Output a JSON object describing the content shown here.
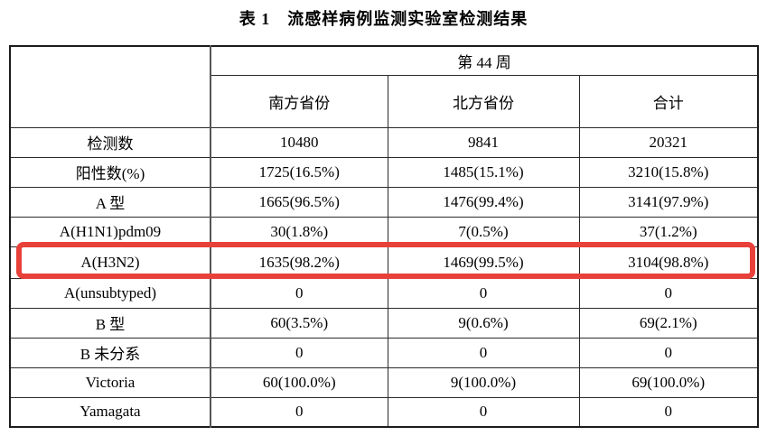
{
  "title": "表 1　流感样病例监测实验室检测结果",
  "table": {
    "corner_label": "",
    "week_header": "第 44 周",
    "columns": [
      "南方省份",
      "北方省份",
      "合计"
    ],
    "rows": [
      {
        "label": "检测数",
        "label_bold": true,
        "cells": [
          "10480",
          "9841",
          "20321"
        ],
        "cells_bold": [
          true,
          true,
          true
        ],
        "highlighted": false
      },
      {
        "label": "阳性数(%)",
        "label_bold": true,
        "cells": [
          "1725(16.5%)",
          "1485(15.1%)",
          "3210(15.8%)"
        ],
        "cells_bold": [
          true,
          true,
          true
        ],
        "highlighted": false
      },
      {
        "label": "A 型",
        "label_bold": true,
        "cells": [
          "1665(96.5%)",
          "1476(99.4%)",
          "3141(97.9%)"
        ],
        "cells_bold": [
          true,
          true,
          true
        ],
        "highlighted": false
      },
      {
        "label": "A(H1N1)pdm09",
        "label_bold": false,
        "cells": [
          "30(1.8%)",
          "7(0.5%)",
          "37(1.2%)"
        ],
        "cells_bold": [
          false,
          true,
          true
        ],
        "highlighted": false
      },
      {
        "label": "A(H3N2)",
        "label_bold": false,
        "cells": [
          "1635(98.2%)",
          "1469(99.5%)",
          "3104(98.8%)"
        ],
        "cells_bold": [
          false,
          false,
          false
        ],
        "highlighted": true
      },
      {
        "label": "A(unsubtyped)",
        "label_bold": false,
        "cells": [
          "0",
          "0",
          "0"
        ],
        "cells_bold": [
          false,
          false,
          false
        ],
        "highlighted": false
      },
      {
        "label": "B 型",
        "label_bold": true,
        "cells": [
          "60(3.5%)",
          "9(0.6%)",
          "69(2.1%)"
        ],
        "cells_bold": [
          true,
          true,
          true
        ],
        "highlighted": false
      },
      {
        "label": "B 未分系",
        "label_bold": false,
        "cells": [
          "0",
          "0",
          "0"
        ],
        "cells_bold": [
          false,
          false,
          false
        ],
        "highlighted": false
      },
      {
        "label": "Victoria",
        "label_bold": false,
        "cells": [
          "60(100.0%)",
          "9(100.0%)",
          "69(100.0%)"
        ],
        "cells_bold": [
          false,
          false,
          false
        ],
        "highlighted": false
      },
      {
        "label": "Yamagata",
        "label_bold": false,
        "cells": [
          "0",
          "0",
          "0"
        ],
        "cells_bold": [
          false,
          false,
          false
        ],
        "highlighted": false
      }
    ]
  },
  "highlight": {
    "color": "#e8413a",
    "highlighted_row": "A(H3N2)"
  }
}
